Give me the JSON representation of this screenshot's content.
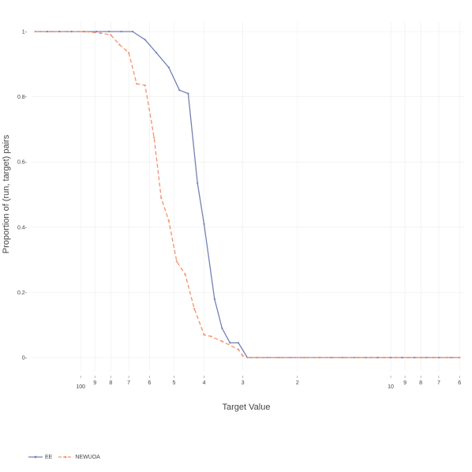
{
  "chart_data": {
    "type": "line",
    "xlabel": "Target Value",
    "ylabel": "Proportion of (run, target) pairs",
    "x_scale": "log_reversed",
    "xlim": [
      144,
      5.8
    ],
    "ylim": [
      0,
      1
    ],
    "x_ticks": [
      100,
      90,
      80,
      70,
      60,
      50,
      40,
      30,
      20,
      10,
      9,
      8,
      7,
      6
    ],
    "x_tick_labels": [
      "100",
      "9",
      "8",
      "7",
      "6",
      "5",
      "4",
      "3",
      "2",
      "10",
      "9",
      "8",
      "7",
      "6"
    ],
    "y_ticks": [
      0,
      0.2,
      0.4,
      0.6,
      0.8,
      1
    ],
    "y_tick_labels": [
      "0",
      "0.2",
      "0.4",
      "0.6",
      "0.8",
      "1"
    ],
    "grid": true,
    "legend_position": "bottom-left",
    "series": [
      {
        "name": "EE",
        "color": "#7380b5",
        "dash": "solid",
        "points": [
          [
            140,
            1
          ],
          [
            128,
            1
          ],
          [
            117,
            1
          ],
          [
            107,
            1
          ],
          [
            98,
            1
          ],
          [
            89,
            1
          ],
          [
            81,
            1
          ],
          [
            74,
            1
          ],
          [
            68,
            1
          ],
          [
            62,
            0.975
          ],
          [
            57,
            0.935
          ],
          [
            52,
            0.89
          ],
          [
            48,
            0.82
          ],
          [
            45,
            0.81
          ],
          [
            42,
            0.535
          ],
          [
            40,
            0.41
          ],
          [
            37,
            0.18
          ],
          [
            35,
            0.09
          ],
          [
            33,
            0.045
          ],
          [
            31,
            0.045
          ],
          [
            29,
            0
          ],
          [
            27,
            0
          ],
          [
            25,
            0
          ],
          [
            23,
            0
          ],
          [
            21,
            0
          ],
          [
            19,
            0
          ],
          [
            17,
            0
          ],
          [
            15.6,
            0
          ],
          [
            14.3,
            0
          ],
          [
            13.1,
            0
          ],
          [
            12,
            0
          ],
          [
            11,
            0
          ],
          [
            10,
            0
          ],
          [
            9.2,
            0
          ],
          [
            8.4,
            0
          ],
          [
            7.7,
            0
          ],
          [
            7,
            0
          ],
          [
            6.4,
            0
          ],
          [
            6,
            0
          ]
        ]
      },
      {
        "name": "NEWUOA",
        "color": "#f4916c",
        "dash": "dashed",
        "points": [
          [
            140,
            1
          ],
          [
            125,
            1
          ],
          [
            110,
            1
          ],
          [
            97,
            1
          ],
          [
            86,
            0.995
          ],
          [
            80,
            0.99
          ],
          [
            75,
            0.96
          ],
          [
            70,
            0.935
          ],
          [
            66,
            0.84
          ],
          [
            62,
            0.835
          ],
          [
            58,
            0.675
          ],
          [
            55,
            0.49
          ],
          [
            52,
            0.42
          ],
          [
            49,
            0.295
          ],
          [
            46,
            0.255
          ],
          [
            43,
            0.15
          ],
          [
            40,
            0.07
          ],
          [
            38,
            0.065
          ],
          [
            35,
            0.05
          ],
          [
            31,
            0.025
          ],
          [
            30,
            0.005
          ],
          [
            29,
            0
          ],
          [
            27,
            0
          ],
          [
            25,
            0
          ],
          [
            23,
            0
          ],
          [
            21,
            0
          ],
          [
            19,
            0
          ],
          [
            17,
            0
          ],
          [
            15.5,
            0
          ],
          [
            14,
            0
          ],
          [
            12.7,
            0
          ],
          [
            11.5,
            0
          ],
          [
            10.5,
            0
          ],
          [
            9.6,
            0
          ],
          [
            8.8,
            0
          ],
          [
            8,
            0
          ],
          [
            7.3,
            0
          ],
          [
            6.6,
            0
          ],
          [
            6,
            0
          ]
        ]
      }
    ]
  }
}
